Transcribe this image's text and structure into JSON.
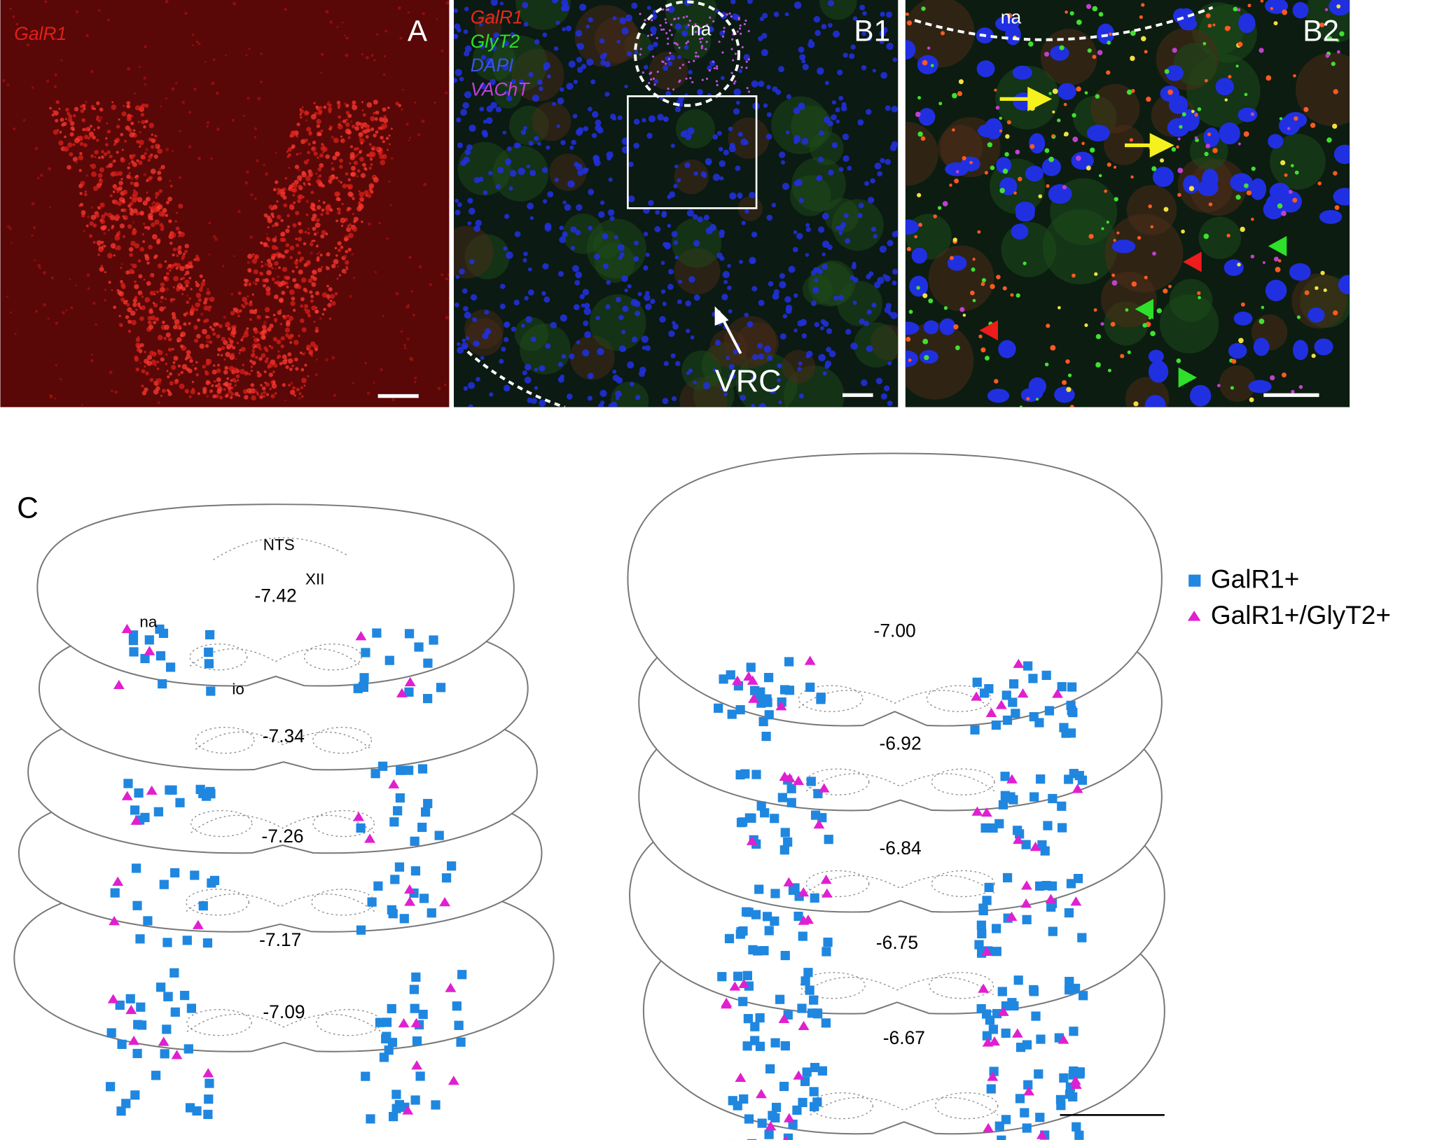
{
  "panels": {
    "A": {
      "label": "A",
      "stain": "GalR1"
    },
    "B1": {
      "label": "B1",
      "stains": [
        "GalR1",
        "GlyT2",
        "DAPI",
        "VAChT"
      ],
      "region": "na",
      "annotation": "VRC"
    },
    "B2": {
      "label": "B2",
      "region": "na"
    },
    "C": {
      "label": "C",
      "landmarks": {
        "nts": "NTS",
        "xii": "XII",
        "na": "na",
        "io": "io"
      },
      "left_sections": [
        {
          "level": "-7.42"
        },
        {
          "level": "-7.34"
        },
        {
          "level": "-7.26"
        },
        {
          "level": "-7.17"
        },
        {
          "level": "-7.09"
        }
      ],
      "right_sections": [
        {
          "level": "-7.00"
        },
        {
          "level": "-6.92"
        },
        {
          "level": "-6.84"
        },
        {
          "level": "-6.75"
        },
        {
          "level": "-6.67"
        }
      ],
      "legend": [
        {
          "label": "GalR1+"
        },
        {
          "label": "GalR1+/GlyT2+"
        }
      ]
    }
  }
}
